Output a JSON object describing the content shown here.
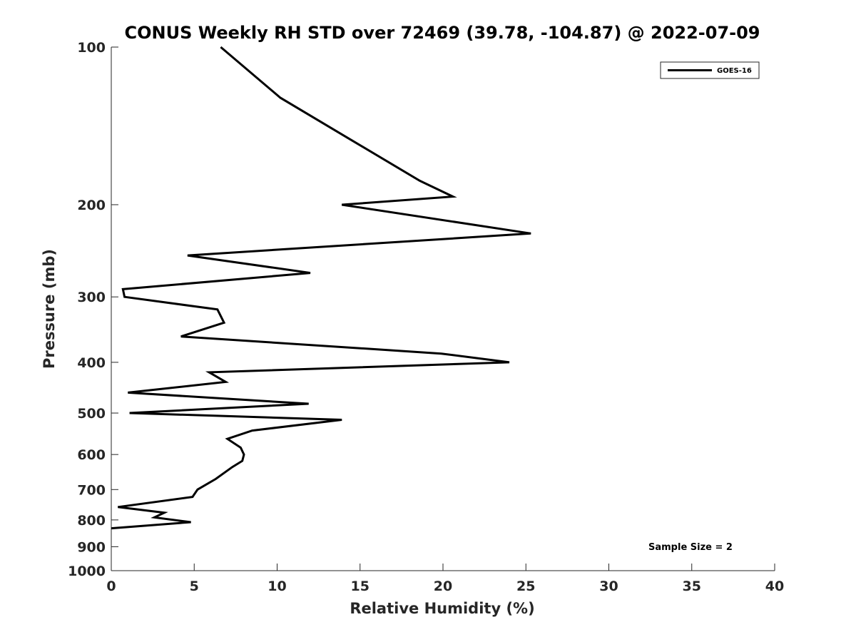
{
  "chart_data": {
    "type": "line",
    "title": "CONUS Weekly RH STD over 72469 (39.78, -104.87) @ 2022-07-09",
    "xlabel": "Relative Humidity (%)",
    "ylabel": "Pressure (mb)",
    "xlim": [
      0,
      40
    ],
    "ylim": [
      100,
      1000
    ],
    "y_scale": "log",
    "y_reversed": true,
    "x_ticks": [
      0,
      5,
      10,
      15,
      20,
      25,
      30,
      35,
      40
    ],
    "x_tick_labels": [
      "0",
      "5",
      "10",
      "15",
      "20",
      "25",
      "30",
      "35",
      "40"
    ],
    "y_ticks": [
      100,
      200,
      300,
      400,
      500,
      600,
      700,
      800,
      900,
      1000
    ],
    "y_tick_labels": [
      "100",
      "200",
      "300",
      "400",
      "500",
      "600",
      "700",
      "800",
      "900",
      "1000"
    ],
    "grid": false,
    "legend_position": "top-right",
    "annotation": "Sample Size = 2",
    "series": [
      {
        "name": "GOES-16",
        "color": "#000000",
        "x": [
          6.6,
          10.2,
          14.4,
          18.6,
          20.6,
          13.9,
          25.3,
          4.6,
          12.0,
          0.7,
          0.8,
          6.4,
          6.8,
          4.2,
          19.9,
          24.0,
          5.9,
          6.9,
          1.0,
          11.9,
          1.1,
          13.9,
          8.5,
          7.0,
          7.8,
          8.0,
          7.9,
          7.3,
          6.3,
          5.2,
          4.9,
          0.4,
          3.2,
          2.6,
          4.8,
          0.0
        ],
        "y": [
          100,
          125,
          150,
          180,
          193,
          200,
          227,
          250,
          270,
          290,
          300,
          317,
          336,
          357,
          385,
          400,
          418,
          436,
          457,
          480,
          500,
          515,
          540,
          560,
          582,
          600,
          617,
          634,
          668,
          700,
          723,
          756,
          775,
          791,
          808,
          830
        ]
      }
    ]
  }
}
